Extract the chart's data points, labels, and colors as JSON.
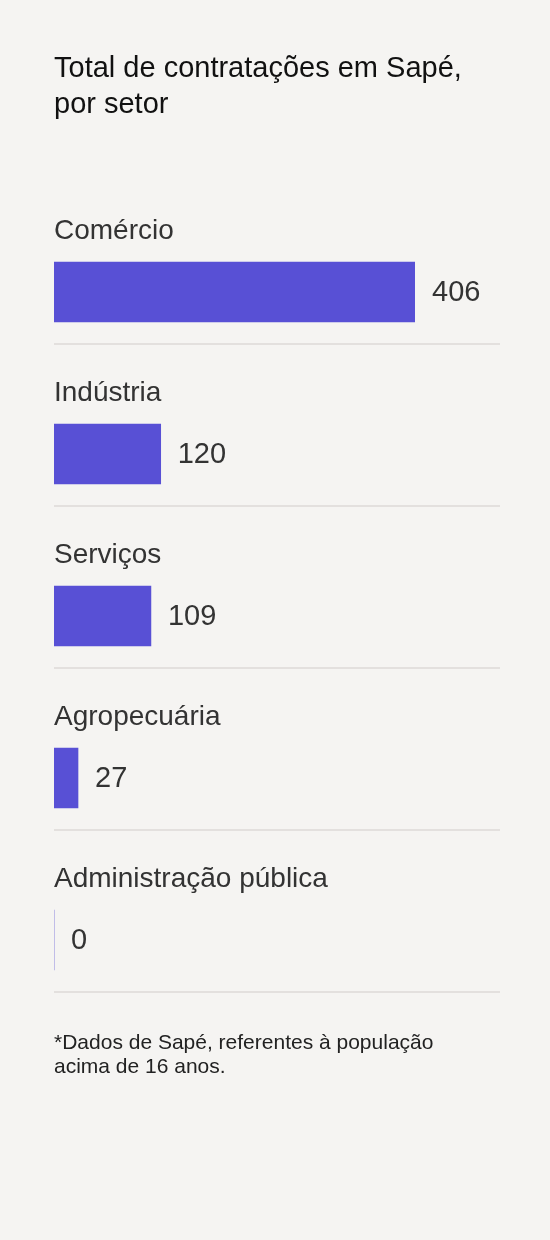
{
  "chart_data": {
    "type": "bar",
    "orientation": "horizontal",
    "title": "Total de contratações em Sapé, por setor",
    "categories": [
      "Comércio",
      "Indústria",
      "Serviços",
      "Agropecuária",
      "Administração pública"
    ],
    "values": [
      406,
      120,
      109,
      27,
      0
    ],
    "color": "#5850d5",
    "data_labels": true,
    "grid": "y",
    "annotations": [
      "*Dados de Sapé, referentes à população acima de 16 anos."
    ]
  }
}
